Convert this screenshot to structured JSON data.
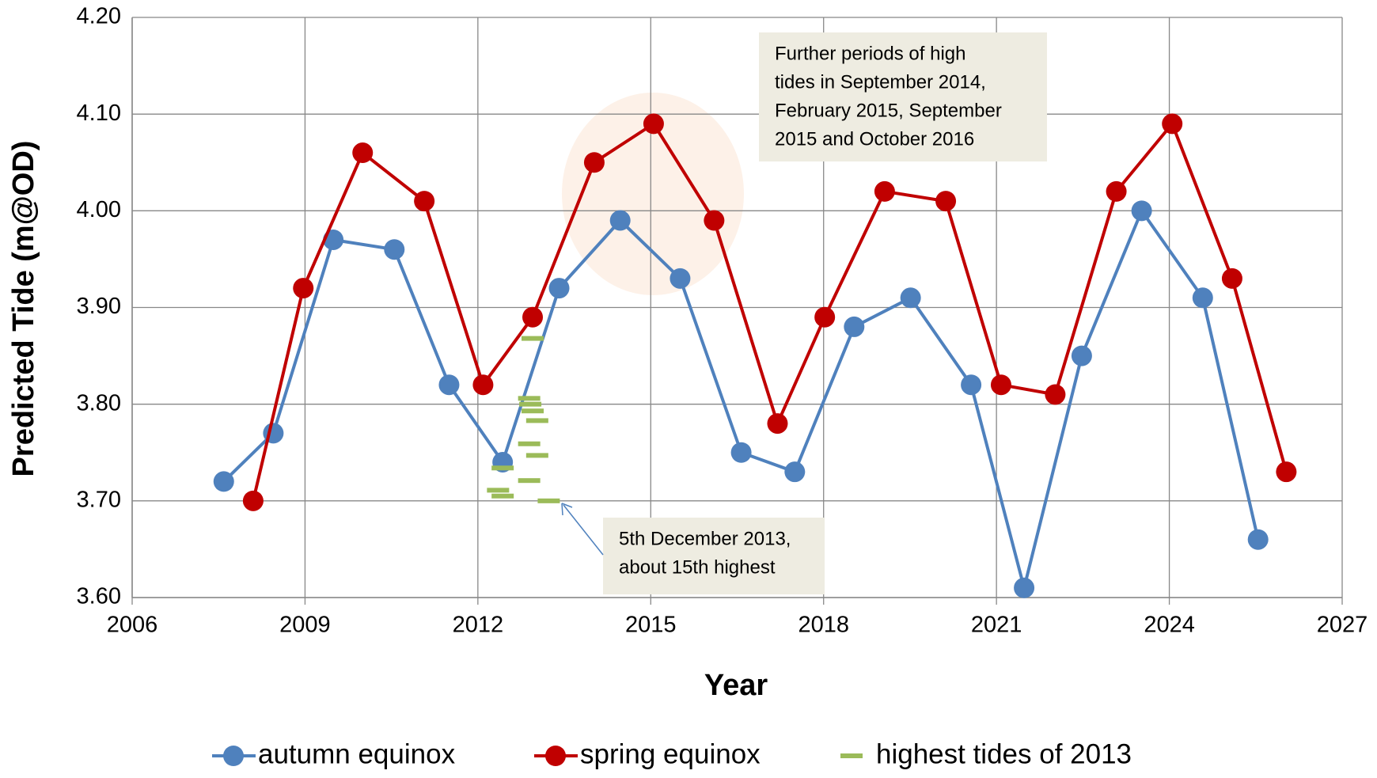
{
  "chart_data": {
    "type": "line",
    "x_label": "Year",
    "y_label": "Predicted Tide (m@OD)",
    "xlim": [
      2006,
      2027
    ],
    "xticks": [
      2006,
      2009,
      2012,
      2015,
      2018,
      2021,
      2024,
      2027
    ],
    "ylim": [
      3.6,
      4.2
    ],
    "yticks": [
      {
        "value": 3.6,
        "label": "3.60"
      },
      {
        "value": 3.7,
        "label": "3.70"
      },
      {
        "value": 3.8,
        "label": "3.80"
      },
      {
        "value": 3.9,
        "label": "3.90"
      },
      {
        "value": 4.0,
        "label": "4.00"
      },
      {
        "value": 4.1,
        "label": "4.10"
      },
      {
        "value": 4.2,
        "label": "4.20"
      }
    ],
    "grid": true,
    "legend": "bottom",
    "series": [
      {
        "name": "autumn equinox",
        "color": "#4f81bd",
        "marker": "circle",
        "x": [
          2007.59,
          2008.45,
          2009.49,
          2010.55,
          2011.5,
          2012.43,
          2013.41,
          2014.47,
          2015.51,
          2016.57,
          2017.5,
          2018.53,
          2019.51,
          2020.56,
          2021.48,
          2022.48,
          2023.52,
          2024.58,
          2025.54
        ],
        "values": [
          3.72,
          3.77,
          3.97,
          3.96,
          3.82,
          3.74,
          3.92,
          3.99,
          3.93,
          3.75,
          3.73,
          3.88,
          3.91,
          3.82,
          3.61,
          3.85,
          4.0,
          3.91,
          3.66
        ]
      },
      {
        "name": "spring equinox",
        "color": "#c00000",
        "marker": "circle",
        "x": [
          2008.1,
          2008.97,
          2010.0,
          2011.07,
          2012.09,
          2012.95,
          2014.02,
          2015.05,
          2016.1,
          2017.2,
          2018.02,
          2019.06,
          2020.12,
          2021.08,
          2022.02,
          2023.08,
          2024.05,
          2025.09,
          2026.03
        ],
        "values": [
          3.7,
          3.92,
          4.06,
          4.01,
          3.82,
          3.89,
          4.05,
          4.09,
          3.99,
          3.78,
          3.89,
          4.02,
          4.01,
          3.82,
          3.81,
          4.02,
          4.09,
          3.93,
          3.73
        ]
      },
      {
        "name": "highest tides of 2013",
        "color": "#9bbb59",
        "marker": "dash",
        "line": false,
        "x": [
          2012.95,
          2012.89,
          2012.91,
          2012.95,
          2013.03,
          2012.89,
          2013.03,
          2012.43,
          2012.89,
          2012.35,
          2012.43,
          2013.23
        ],
        "values": [
          3.868,
          3.806,
          3.8,
          3.793,
          3.783,
          3.759,
          3.747,
          3.734,
          3.721,
          3.711,
          3.705,
          3.7
        ]
      }
    ],
    "annotations": [
      {
        "lines": [
          "Further periods of high",
          "tides in September 2014,",
          "February 2015, September",
          "2015 and October 2016"
        ]
      },
      {
        "lines": [
          "5th December 2013,",
          "about 15th highest"
        ]
      }
    ]
  }
}
